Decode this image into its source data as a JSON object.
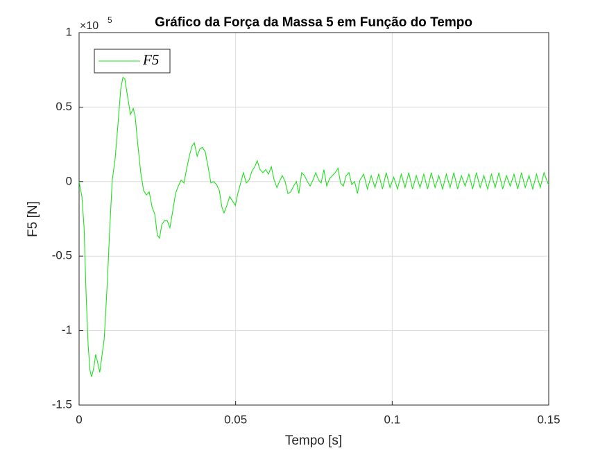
{
  "chart_data": {
    "type": "line",
    "title": "Gráfico da Força da Massa 5 em Função do Tempo",
    "y_scale_base": "×10",
    "y_scale_exponent": "5",
    "xlabel": "Tempo [s]",
    "ylabel": "F5 [N]",
    "xlim": [
      0,
      0.15
    ],
    "xticks": [
      0,
      0.05,
      0.1,
      0.15
    ],
    "ylim": [
      -1.5,
      1
    ],
    "yticks": [
      -1.5,
      -1,
      -0.5,
      0,
      0.5,
      1
    ],
    "grid": true,
    "legend": "upper-left",
    "x": [
      0,
      0.0009,
      0.0016,
      0.0022,
      0.0029,
      0.0035,
      0.004,
      0.0047,
      0.0053,
      0.006,
      0.0066,
      0.0073,
      0.008,
      0.0084,
      0.0091,
      0.0098,
      0.0106,
      0.0115,
      0.0124,
      0.0133,
      0.014,
      0.0146,
      0.0155,
      0.0164,
      0.0173,
      0.0179,
      0.0188,
      0.0197,
      0.0206,
      0.0215,
      0.0224,
      0.0233,
      0.0242,
      0.025,
      0.0257,
      0.0264,
      0.0273,
      0.0281,
      0.029,
      0.0299,
      0.0308,
      0.0317,
      0.0326,
      0.0335,
      0.0343,
      0.0352,
      0.0361,
      0.0368,
      0.0377,
      0.0386,
      0.0394,
      0.0403,
      0.0412,
      0.0421,
      0.043,
      0.0439,
      0.0448,
      0.0456,
      0.0463,
      0.0472,
      0.0481,
      0.049,
      0.0499,
      0.0507,
      0.0516,
      0.0525,
      0.0534,
      0.0543,
      0.0552,
      0.0561,
      0.0569,
      0.0578,
      0.0587,
      0.0596,
      0.0605,
      0.0614,
      0.0623,
      0.0632,
      0.064,
      0.0649,
      0.0658,
      0.0667,
      0.0676,
      0.0685,
      0.0694,
      0.0702,
      0.0711,
      0.072,
      0.0729,
      0.0738,
      0.0747,
      0.0756,
      0.0765,
      0.0773,
      0.0782,
      0.0791,
      0.08,
      0.0809,
      0.0818,
      0.0827,
      0.0835,
      0.0844,
      0.0853,
      0.0862,
      0.0871,
      0.088,
      0.0889,
      0.0897,
      0.0909,
      0.0921,
      0.0933,
      0.0945,
      0.0957,
      0.0969,
      0.0981,
      0.0993,
      0.1005,
      0.1017,
      0.1029,
      0.1041,
      0.1053,
      0.1065,
      0.1077,
      0.1089,
      0.1101,
      0.1113,
      0.1125,
      0.1137,
      0.1149,
      0.1161,
      0.1173,
      0.1185,
      0.1197,
      0.1209,
      0.1221,
      0.1233,
      0.1245,
      0.1257,
      0.1269,
      0.1281,
      0.1293,
      0.1305,
      0.1317,
      0.1329,
      0.1341,
      0.1353,
      0.1365,
      0.1377,
      0.1389,
      0.1401,
      0.1413,
      0.1425,
      0.1437,
      0.1449,
      0.1461,
      0.1473,
      0.1485,
      0.1497,
      0.15
    ],
    "series": [
      {
        "name": "F5",
        "color": "#1ee01e",
        "values": [
          0,
          -0.1,
          -0.31,
          -0.73,
          -1.1,
          -1.27,
          -1.31,
          -1.25,
          -1.16,
          -1.22,
          -1.28,
          -1.17,
          -1.06,
          -0.92,
          -0.64,
          -0.31,
          0.01,
          0.15,
          0.38,
          0.62,
          0.7,
          0.69,
          0.57,
          0.45,
          0.49,
          0.44,
          0.24,
          0.06,
          -0.06,
          -0.09,
          -0.07,
          -0.17,
          -0.22,
          -0.36,
          -0.38,
          -0.29,
          -0.26,
          -0.26,
          -0.31,
          -0.2,
          -0.08,
          -0.03,
          0.01,
          -0.01,
          0.08,
          0.17,
          0.24,
          0.26,
          0.17,
          0.22,
          0.23,
          0.2,
          0.1,
          -0.01,
          0,
          -0.02,
          -0.06,
          -0.17,
          -0.21,
          -0.16,
          -0.1,
          -0.13,
          -0.16,
          -0.08,
          -0.01,
          0.06,
          -0.01,
          0.01,
          0.07,
          0.1,
          0.14,
          0.08,
          0.06,
          0.08,
          0.05,
          0.1,
          0.01,
          -0.04,
          0,
          0.04,
          0,
          -0.08,
          -0.07,
          -0.03,
          0,
          -0.08,
          0.06,
          0.04,
          0,
          -0.03,
          0.01,
          0.06,
          0.01,
          -0.01,
          0.08,
          -0.03,
          0.02,
          0.04,
          0.06,
          0.09,
          -0.01,
          -0.03,
          0.04,
          0.06,
          -0.02,
          0,
          -0.08,
          0.01,
          0.05,
          -0.05,
          0.04,
          -0.04,
          0.05,
          -0.05,
          0.06,
          -0.04,
          0.03,
          -0.05,
          0.05,
          -0.04,
          0.06,
          -0.05,
          0.04,
          -0.04,
          0.05,
          -0.05,
          0.06,
          -0.04,
          0.04,
          -0.05,
          0.05,
          -0.04,
          0.06,
          -0.05,
          0.04,
          -0.03,
          0.05,
          -0.05,
          0.06,
          -0.04,
          0.04,
          -0.05,
          0.05,
          -0.04,
          0.06,
          -0.05,
          0.04,
          -0.03,
          0.05,
          -0.05,
          0.06,
          -0.04,
          0.04,
          -0.05,
          0.05,
          -0.04,
          0.06,
          -0.01,
          -0.02
        ]
      }
    ]
  }
}
